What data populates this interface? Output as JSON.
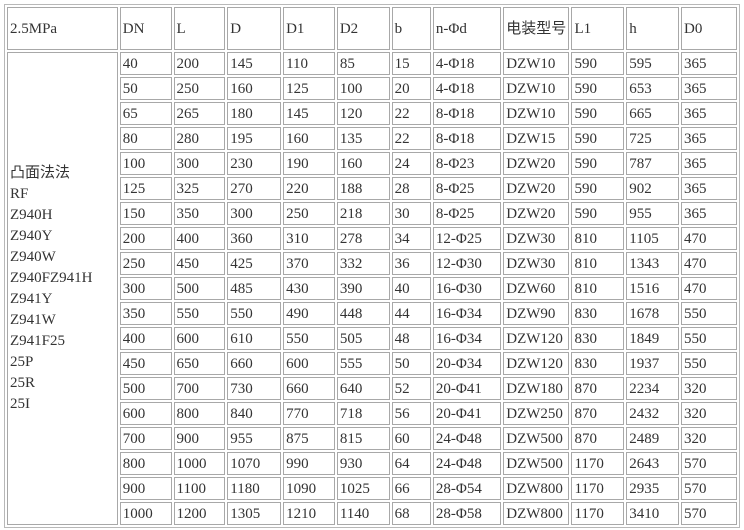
{
  "table": {
    "header": [
      "2.5MPa",
      "DN",
      "L",
      "D",
      "D1",
      "D2",
      "b",
      "n-Φd",
      "电装型号",
      "L1",
      "h",
      "D0"
    ],
    "side_labels": [
      "凸面法法",
      "RF",
      "Z940H",
      "Z940Y",
      "Z940W",
      "Z940FZ941H",
      "Z941Y",
      "Z941W",
      "Z941F25",
      "25P",
      "25R",
      "25I"
    ],
    "rows": [
      [
        "40",
        "200",
        "145",
        "110",
        "85",
        "15",
        "4-Φ18",
        "DZW10",
        "590",
        "595",
        "365"
      ],
      [
        "50",
        "250",
        "160",
        "125",
        "100",
        "20",
        "4-Φ18",
        "DZW10",
        "590",
        "653",
        "365"
      ],
      [
        "65",
        "265",
        "180",
        "145",
        "120",
        "22",
        "8-Φ18",
        "DZW10",
        "590",
        "665",
        "365"
      ],
      [
        "80",
        "280",
        "195",
        "160",
        "135",
        "22",
        "8-Φ18",
        "DZW15",
        "590",
        "725",
        "365"
      ],
      [
        "100",
        "300",
        "230",
        "190",
        "160",
        "24",
        "8-Φ23",
        "DZW20",
        "590",
        "787",
        "365"
      ],
      [
        "125",
        "325",
        "270",
        "220",
        "188",
        "28",
        "8-Φ25",
        "DZW20",
        "590",
        "902",
        "365"
      ],
      [
        "150",
        "350",
        "300",
        "250",
        "218",
        "30",
        "8-Φ25",
        "DZW20",
        "590",
        "955",
        "365"
      ],
      [
        "200",
        "400",
        "360",
        "310",
        "278",
        "34",
        "12-Φ25",
        "DZW30",
        "810",
        "1105",
        "470"
      ],
      [
        "250",
        "450",
        "425",
        "370",
        "332",
        "36",
        "12-Φ30",
        "DZW30",
        "810",
        "1343",
        "470"
      ],
      [
        "300",
        "500",
        "485",
        "430",
        "390",
        "40",
        "16-Φ30",
        "DZW60",
        "810",
        "1516",
        "470"
      ],
      [
        "350",
        "550",
        "550",
        "490",
        "448",
        "44",
        "16-Φ34",
        "DZW90",
        "830",
        "1678",
        "550"
      ],
      [
        "400",
        "600",
        "610",
        "550",
        "505",
        "48",
        "16-Φ34",
        "DZW120",
        "830",
        "1849",
        "550"
      ],
      [
        "450",
        "650",
        "660",
        "600",
        "555",
        "50",
        "20-Φ34",
        "DZW120",
        "830",
        "1937",
        "550"
      ],
      [
        "500",
        "700",
        "730",
        "660",
        "640",
        "52",
        "20-Φ41",
        "DZW180",
        "870",
        "2234",
        "320"
      ],
      [
        "600",
        "800",
        "840",
        "770",
        "718",
        "56",
        "20-Φ41",
        "DZW250",
        "870",
        "2432",
        "320"
      ],
      [
        "700",
        "900",
        "955",
        "875",
        "815",
        "60",
        "24-Φ48",
        "DZW500",
        "870",
        "2489",
        "320"
      ],
      [
        "800",
        "1000",
        "1070",
        "990",
        "930",
        "64",
        "24-Φ48",
        "DZW500",
        "1170",
        "2643",
        "570"
      ],
      [
        "900",
        "1100",
        "1180",
        "1090",
        "1025",
        "66",
        "28-Φ54",
        "DZW800",
        "1170",
        "2935",
        "570"
      ],
      [
        "1000",
        "1200",
        "1305",
        "1210",
        "1140",
        "68",
        "28-Φ58",
        "DZW800",
        "1170",
        "3410",
        "570"
      ]
    ]
  }
}
